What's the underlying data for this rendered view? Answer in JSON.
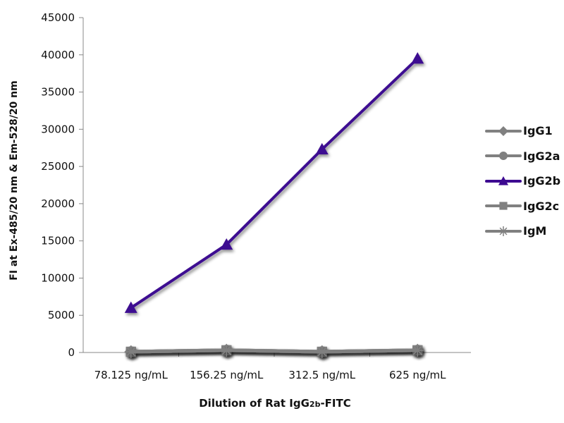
{
  "chart_data": {
    "type": "line",
    "title": "",
    "xlabel": {
      "prefix": "Dilution of Rat IgG",
      "sub": "2b",
      "suffix": "-FITC"
    },
    "ylabel": "FI at Ex-485/20 nm & Em-528/20 nm",
    "categories": [
      "78.125 ng/mL",
      "156.25 ng/mL",
      "312.5 ng/mL",
      "625 ng/mL"
    ],
    "ylim": [
      0,
      45000
    ],
    "yticks": [
      "0",
      "5000",
      "10000",
      "15000",
      "20000",
      "25000",
      "30000",
      "35000",
      "40000",
      "45000"
    ],
    "grid": false,
    "legend_position": "right",
    "series": [
      {
        "name": "IgG1",
        "marker": "diamond",
        "color": "#808080",
        "values": [
          100,
          300,
          100,
          300
        ]
      },
      {
        "name": "IgG2a",
        "marker": "circle",
        "color": "#808080",
        "values": [
          100,
          300,
          100,
          300
        ]
      },
      {
        "name": "IgG2b",
        "marker": "triangle",
        "color": "#3d0a91",
        "values": [
          6000,
          14500,
          27300,
          39500
        ]
      },
      {
        "name": "IgG2c",
        "marker": "square",
        "color": "#808080",
        "values": [
          100,
          300,
          100,
          300
        ]
      },
      {
        "name": "IgM",
        "marker": "star",
        "color": "#808080",
        "values": [
          100,
          300,
          100,
          300
        ]
      }
    ]
  }
}
